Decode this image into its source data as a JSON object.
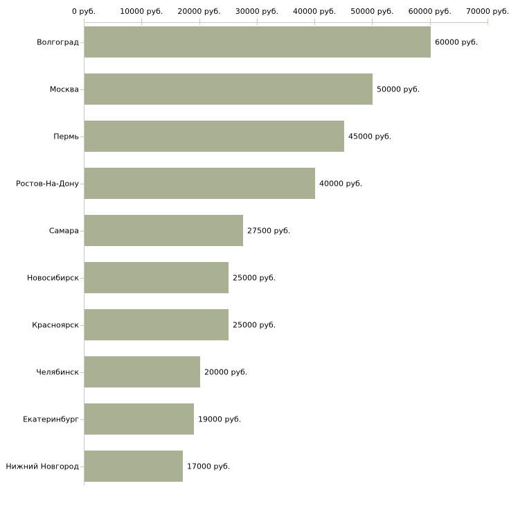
{
  "chart_data": {
    "type": "bar",
    "orientation": "horizontal",
    "title": "",
    "xlabel": "",
    "ylabel": "",
    "categories": [
      "Волгоград",
      "Москва",
      "Пермь",
      "Ростов-На-Дону",
      "Самара",
      "Новосибирск",
      "Красноярск",
      "Челябинск",
      "Екатеринбург",
      "Нижний Новгород"
    ],
    "values": [
      60000,
      50000,
      45000,
      40000,
      27500,
      25000,
      25000,
      20000,
      19000,
      17000
    ],
    "value_labels": [
      "60000 руб.",
      "50000 руб.",
      "45000 руб.",
      "40000 руб.",
      "27500 руб.",
      "25000 руб.",
      "25000 руб.",
      "20000 руб.",
      "19000 руб.",
      "17000 руб."
    ],
    "x_ticks": [
      "0 руб.",
      "10000 руб.",
      "20000 руб.",
      "30000 руб.",
      "40000 руб.",
      "50000 руб.",
      "60000 руб.",
      "70000 руб."
    ],
    "x_tick_values": [
      0,
      10000,
      20000,
      30000,
      40000,
      50000,
      60000,
      70000
    ],
    "xlim": [
      0,
      70000
    ],
    "grid": false,
    "legend_position": "none",
    "axis_position": "top",
    "bar_color": "#a9b093",
    "axis_line_color": "#c9c9c9",
    "tick_mark_color": "#cccc99",
    "text_color": "#000000",
    "background_color": "#ffffff"
  }
}
